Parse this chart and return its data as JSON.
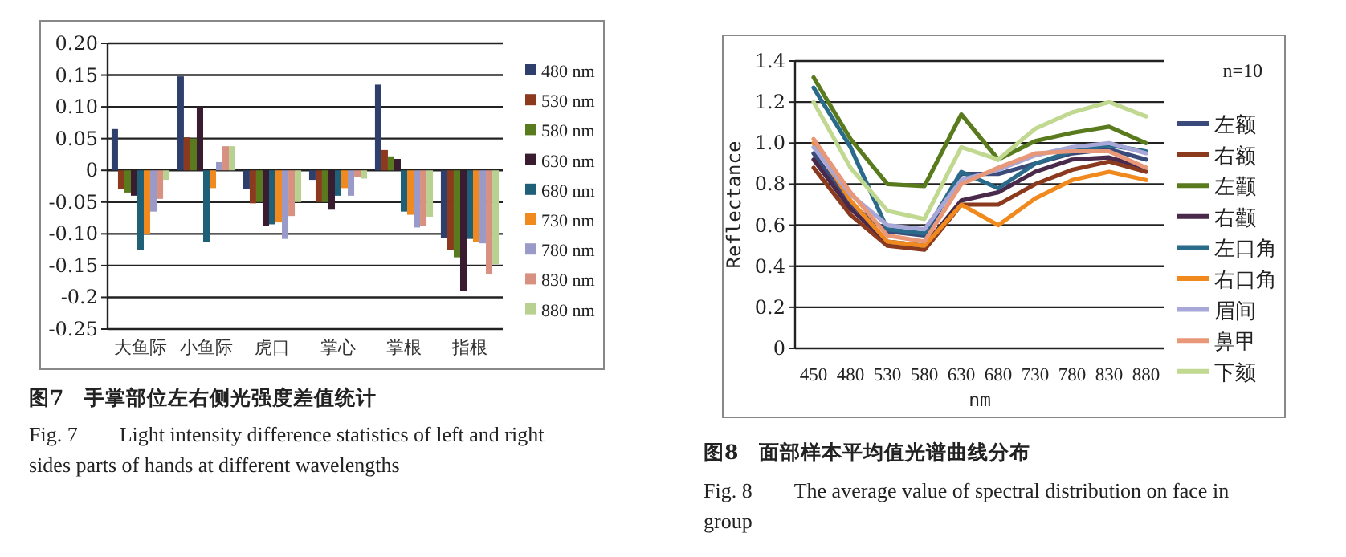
{
  "chart_data": [
    {
      "type": "bar",
      "title": "图7　手掌部位左右侧光强度差值统计",
      "annotations": [
        "Fig. 7　　Light intensity difference statistics of left and right sides parts of hands at different wavelengths"
      ],
      "categories": [
        "大鱼际",
        "小鱼际",
        "虎口",
        "掌心",
        "掌根",
        "指根"
      ],
      "ylim": [
        -0.25,
        0.2
      ],
      "yticks": [
        {
          "value": 0.2,
          "label": "0.20"
        },
        {
          "value": 0.15,
          "label": "0.15"
        },
        {
          "value": 0.1,
          "label": "0.10"
        },
        {
          "value": 0.05,
          "label": "0.05"
        },
        0,
        -0.05,
        {
          "value": -0.1,
          "label": "-0.10"
        },
        -0.15,
        {
          "value": -0.2,
          "label": "-0.2"
        },
        -0.25
      ],
      "grid": "y",
      "legend": "right",
      "series": [
        {
          "name": "480 nm",
          "color": "#2e3f6b",
          "values": [
            0.065,
            0.148,
            -0.03,
            -0.015,
            0.135,
            -0.107
          ]
        },
        {
          "name": "530 nm",
          "color": "#8b3a1e",
          "values": [
            -0.03,
            0.052,
            -0.052,
            -0.05,
            0.032,
            -0.125
          ]
        },
        {
          "name": "580 nm",
          "color": "#5a7a1e",
          "values": [
            -0.035,
            0.05,
            -0.05,
            -0.05,
            0.022,
            -0.137
          ]
        },
        {
          "name": "630 nm",
          "color": "#3a1c30",
          "values": [
            -0.04,
            0.1,
            -0.088,
            -0.062,
            0.018,
            -0.19
          ]
        },
        {
          "name": "680 nm",
          "color": "#1f5f78",
          "values": [
            -0.125,
            -0.113,
            -0.085,
            -0.04,
            -0.065,
            -0.108
          ]
        },
        {
          "name": "730 nm",
          "color": "#f08a1e",
          "values": [
            -0.1,
            -0.028,
            -0.082,
            -0.028,
            -0.07,
            -0.113
          ]
        },
        {
          "name": "780 nm",
          "color": "#9a9ac8",
          "values": [
            -0.065,
            0.013,
            -0.108,
            -0.04,
            -0.09,
            -0.115
          ]
        },
        {
          "name": "830 nm",
          "color": "#d89080",
          "values": [
            -0.045,
            0.038,
            -0.072,
            -0.01,
            -0.087,
            -0.163
          ]
        },
        {
          "name": "880 nm",
          "color": "#b8d090",
          "values": [
            -0.015,
            0.038,
            -0.05,
            -0.013,
            -0.073,
            -0.148
          ]
        }
      ]
    },
    {
      "type": "line",
      "title": "图8　面部样本平均值光谱曲线分布",
      "annotations": [
        "n=10",
        "Fig. 8　　The average value of spectral distribution on face in group"
      ],
      "xlabel": "nm",
      "ylabel": "Reflectance",
      "categories": [
        "450",
        "480",
        "530",
        "580",
        "630",
        "680",
        "730",
        "780",
        "830",
        "880"
      ],
      "ylim": [
        0,
        1.4
      ],
      "yticks": [
        0,
        0.2,
        0.4,
        0.6,
        0.8,
        {
          "value": 1,
          "label": "1.0"
        },
        1.2,
        1.4
      ],
      "grid": "y",
      "legend": "right",
      "marker": "none",
      "line_style": "solid",
      "series": [
        {
          "name": "左额",
          "color": "#3a4a7a",
          "values": [
            0.95,
            0.7,
            0.57,
            0.55,
            0.85,
            0.85,
            0.9,
            0.95,
            0.97,
            0.92
          ]
        },
        {
          "name": "右额",
          "color": "#8b3a1e",
          "values": [
            0.88,
            0.65,
            0.5,
            0.48,
            0.7,
            0.7,
            0.8,
            0.87,
            0.91,
            0.86
          ]
        },
        {
          "name": "左颧",
          "color": "#5a7a1e",
          "values": [
            1.32,
            1.02,
            0.8,
            0.79,
            1.14,
            0.92,
            1.01,
            1.05,
            1.08,
            1.0
          ]
        },
        {
          "name": "右颧",
          "color": "#4a2a4a",
          "values": [
            0.92,
            0.68,
            0.52,
            0.5,
            0.72,
            0.76,
            0.86,
            0.92,
            0.93,
            0.88
          ]
        },
        {
          "name": "左口角",
          "color": "#2a6a8a",
          "values": [
            1.27,
            0.98,
            0.58,
            0.56,
            0.86,
            0.78,
            0.9,
            0.96,
            0.99,
            0.96
          ]
        },
        {
          "name": "右口角",
          "color": "#f08a1e",
          "values": [
            1.0,
            0.72,
            0.52,
            0.5,
            0.7,
            0.6,
            0.73,
            0.82,
            0.86,
            0.82
          ]
        },
        {
          "name": "眉间",
          "color": "#a8a8d8",
          "values": [
            0.98,
            0.75,
            0.6,
            0.58,
            0.82,
            0.87,
            0.94,
            0.98,
            1.0,
            0.95
          ]
        },
        {
          "name": "鼻甲",
          "color": "#e89878",
          "values": [
            1.02,
            0.76,
            0.55,
            0.52,
            0.8,
            0.88,
            0.95,
            0.96,
            0.96,
            0.88
          ]
        },
        {
          "name": "下颏",
          "color": "#c0d890",
          "values": [
            1.2,
            0.88,
            0.67,
            0.63,
            0.98,
            0.92,
            1.07,
            1.15,
            1.2,
            1.13
          ]
        }
      ]
    }
  ]
}
